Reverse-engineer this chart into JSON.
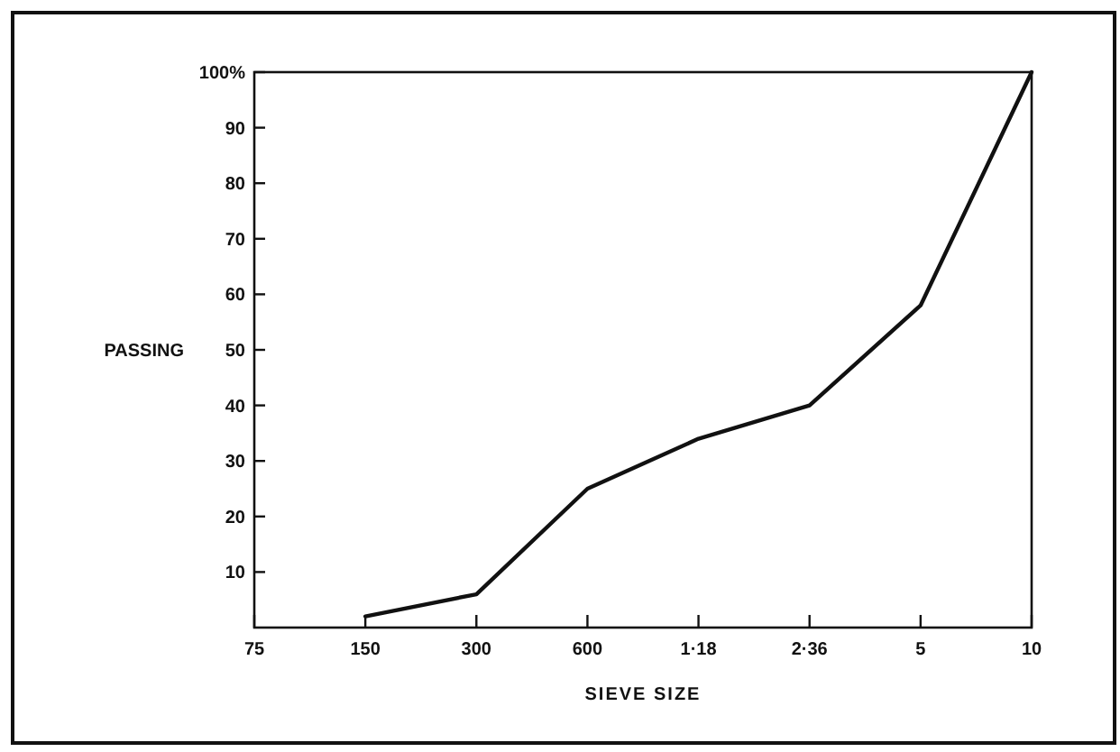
{
  "chart_data": {
    "type": "line",
    "xlabel": "SIEVE SIZE",
    "ylabel": "PASSING",
    "categories": [
      "75",
      "150",
      "300",
      "600",
      "1·18",
      "2·36",
      "5",
      "10"
    ],
    "values": [
      null,
      2,
      6,
      25,
      34,
      40,
      58,
      100
    ],
    "color": "#111111",
    "ylim": [
      0,
      100
    ],
    "yticks": [
      10,
      20,
      30,
      40,
      50,
      60,
      70,
      80,
      90,
      {
        "value": 100,
        "label": "100%"
      }
    ],
    "marker": "none",
    "line_style": "solid"
  }
}
